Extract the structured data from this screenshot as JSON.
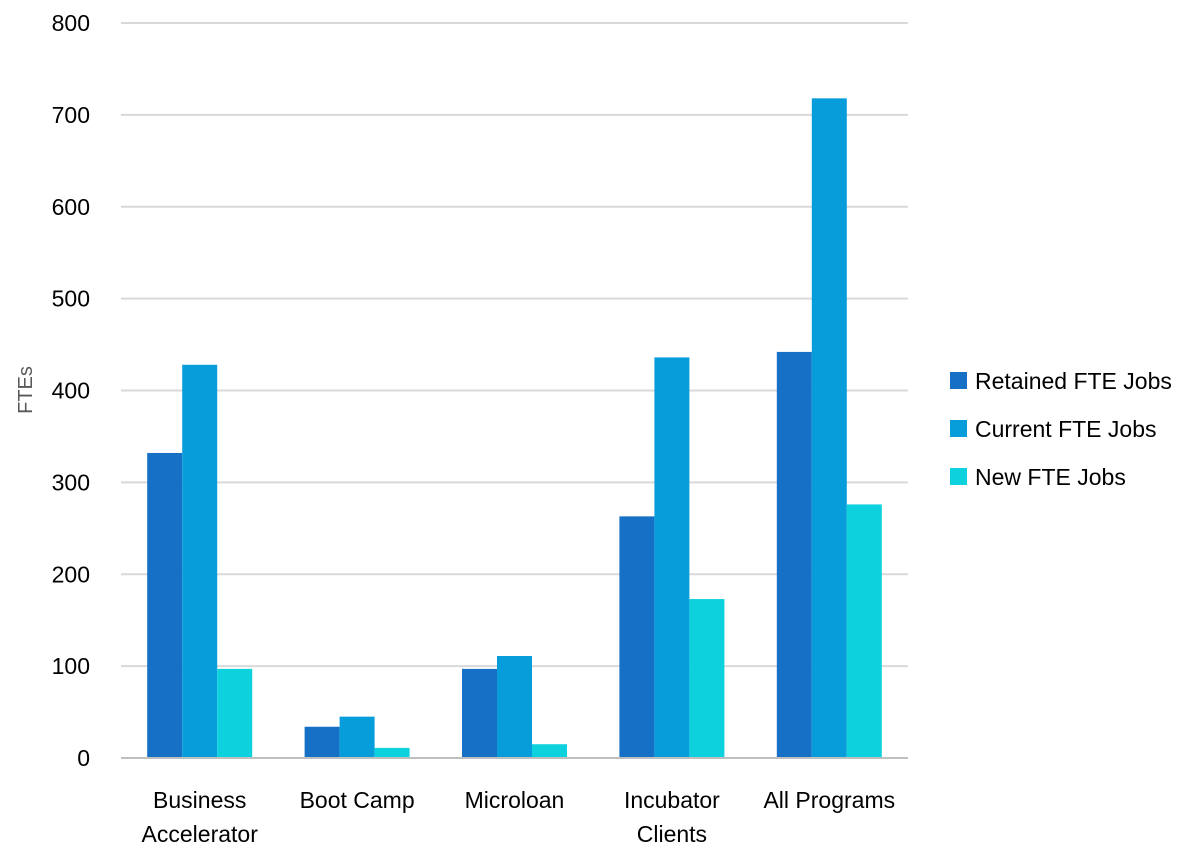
{
  "chart_data": {
    "type": "bar",
    "title": "",
    "xlabel": "",
    "ylabel": "FTEs",
    "ylim": [
      0,
      800
    ],
    "yticks": [
      0,
      100,
      200,
      300,
      400,
      500,
      600,
      700,
      800
    ],
    "grid": true,
    "legend_position": "right",
    "categories": [
      [
        "Business",
        "Accelerator"
      ],
      [
        "Boot Camp"
      ],
      [
        "Microloan"
      ],
      [
        "Incubator",
        "Clients"
      ],
      [
        "All Programs"
      ]
    ],
    "series": [
      {
        "name": "Retained FTE Jobs",
        "color": "#1570C6",
        "values": [
          332,
          34,
          97,
          263,
          442
        ]
      },
      {
        "name": "Current FTE Jobs",
        "color": "#079DDA",
        "values": [
          428,
          45,
          111,
          436,
          718
        ]
      },
      {
        "name": "New FTE Jobs",
        "color": "#0DD1DC",
        "values": [
          97,
          11,
          15,
          173,
          276
        ]
      }
    ]
  },
  "colors": {
    "gridline": "#d9d9d9",
    "axis_line": "#bfbfbf",
    "text": "#000000",
    "axis_title": "#595959"
  }
}
